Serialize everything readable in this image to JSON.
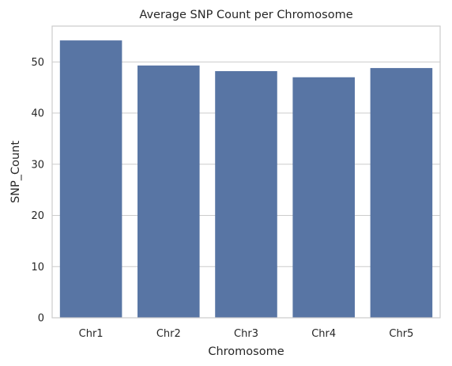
{
  "chart_data": {
    "type": "bar",
    "title": "Average SNP Count per Chromosome",
    "xlabel": "Chromosome",
    "ylabel": "SNP_Count",
    "categories": [
      "Chr1",
      "Chr2",
      "Chr3",
      "Chr4",
      "Chr5"
    ],
    "values": [
      54.2,
      49.3,
      48.2,
      47.0,
      48.8
    ],
    "ylim": [
      0,
      57
    ],
    "yticks": [
      0,
      10,
      20,
      30,
      40,
      50
    ],
    "grid": true,
    "bar_color": "#5875a4",
    "grid_color": "#cccccc",
    "spine_color": "#cccccc"
  }
}
